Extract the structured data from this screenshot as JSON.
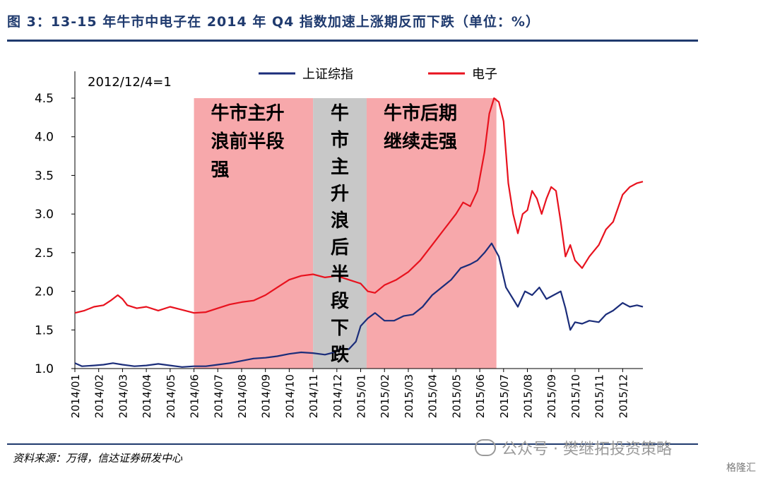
{
  "header": {
    "title": "图 3：13-15 年牛市中电子在 2014 年 Q4 指数加速上涨期反而下跌（单位：%）"
  },
  "footer": {
    "source": "资料来源：万得，信达证券研发中心",
    "watermark": "公众号 · 樊继拓投资策略",
    "corner_mark": "格隆汇"
  },
  "chart_data": {
    "type": "line",
    "note": "2012/12/4=1",
    "ylim": [
      1.0,
      4.5
    ],
    "yticks": [
      "1.0",
      "1.5",
      "2.0",
      "2.5",
      "3.0",
      "3.5",
      "4.0",
      "4.5"
    ],
    "categories": [
      "2014/01",
      "2014/02",
      "2014/03",
      "2014/04",
      "2014/05",
      "2014/06",
      "2014/07",
      "2014/08",
      "2014/09",
      "2014/10",
      "2014/11",
      "2014/12",
      "2015/01",
      "2015/02",
      "2015/03",
      "2015/04",
      "2015/05",
      "2015/06",
      "2015/07",
      "2015/08",
      "2015/09",
      "2015/10",
      "2015/11",
      "2015/12"
    ],
    "x_index_range": [
      0,
      23.85
    ],
    "legend_position": "top-center",
    "series": [
      {
        "name": "上证综指",
        "color": "#1b2d7a",
        "points": [
          [
            0,
            1.07
          ],
          [
            0.3,
            1.03
          ],
          [
            0.8,
            1.04
          ],
          [
            1.2,
            1.05
          ],
          [
            1.6,
            1.07
          ],
          [
            2.0,
            1.05
          ],
          [
            2.5,
            1.03
          ],
          [
            3.0,
            1.04
          ],
          [
            3.5,
            1.06
          ],
          [
            4.0,
            1.04
          ],
          [
            4.5,
            1.02
          ],
          [
            5.0,
            1.03
          ],
          [
            5.5,
            1.03
          ],
          [
            6.0,
            1.05
          ],
          [
            6.5,
            1.07
          ],
          [
            7.0,
            1.1
          ],
          [
            7.5,
            1.13
          ],
          [
            8.0,
            1.14
          ],
          [
            8.5,
            1.16
          ],
          [
            9.0,
            1.19
          ],
          [
            9.5,
            1.21
          ],
          [
            10.0,
            1.2
          ],
          [
            10.5,
            1.18
          ],
          [
            10.9,
            1.21
          ],
          [
            11.2,
            1.26
          ],
          [
            11.5,
            1.25
          ],
          [
            11.8,
            1.35
          ],
          [
            12.0,
            1.55
          ],
          [
            12.3,
            1.65
          ],
          [
            12.6,
            1.72
          ],
          [
            13.0,
            1.62
          ],
          [
            13.4,
            1.62
          ],
          [
            13.8,
            1.68
          ],
          [
            14.2,
            1.7
          ],
          [
            14.6,
            1.8
          ],
          [
            15.0,
            1.95
          ],
          [
            15.4,
            2.05
          ],
          [
            15.8,
            2.15
          ],
          [
            16.2,
            2.3
          ],
          [
            16.6,
            2.35
          ],
          [
            16.9,
            2.4
          ],
          [
            17.2,
            2.5
          ],
          [
            17.5,
            2.62
          ],
          [
            17.8,
            2.45
          ],
          [
            18.1,
            2.05
          ],
          [
            18.4,
            1.9
          ],
          [
            18.6,
            1.8
          ],
          [
            18.9,
            2.0
          ],
          [
            19.2,
            1.95
          ],
          [
            19.5,
            2.05
          ],
          [
            19.8,
            1.9
          ],
          [
            20.1,
            1.95
          ],
          [
            20.4,
            2.0
          ],
          [
            20.6,
            1.78
          ],
          [
            20.8,
            1.5
          ],
          [
            21.0,
            1.6
          ],
          [
            21.3,
            1.58
          ],
          [
            21.6,
            1.62
          ],
          [
            22.0,
            1.6
          ],
          [
            22.3,
            1.7
          ],
          [
            22.6,
            1.75
          ],
          [
            23.0,
            1.85
          ],
          [
            23.3,
            1.8
          ],
          [
            23.6,
            1.82
          ],
          [
            23.85,
            1.8
          ]
        ]
      },
      {
        "name": "电子",
        "color": "#e8121e",
        "points": [
          [
            0,
            1.72
          ],
          [
            0.4,
            1.75
          ],
          [
            0.8,
            1.8
          ],
          [
            1.2,
            1.82
          ],
          [
            1.5,
            1.88
          ],
          [
            1.8,
            1.95
          ],
          [
            2.0,
            1.9
          ],
          [
            2.2,
            1.82
          ],
          [
            2.6,
            1.78
          ],
          [
            3.0,
            1.8
          ],
          [
            3.5,
            1.75
          ],
          [
            4.0,
            1.8
          ],
          [
            4.5,
            1.76
          ],
          [
            5.0,
            1.72
          ],
          [
            5.5,
            1.73
          ],
          [
            6.0,
            1.78
          ],
          [
            6.5,
            1.83
          ],
          [
            7.0,
            1.86
          ],
          [
            7.5,
            1.88
          ],
          [
            8.0,
            1.95
          ],
          [
            8.5,
            2.05
          ],
          [
            9.0,
            2.15
          ],
          [
            9.5,
            2.2
          ],
          [
            10.0,
            2.22
          ],
          [
            10.5,
            2.18
          ],
          [
            11.0,
            2.2
          ],
          [
            11.5,
            2.15
          ],
          [
            12.0,
            2.1
          ],
          [
            12.3,
            2.0
          ],
          [
            12.6,
            1.98
          ],
          [
            13.0,
            2.08
          ],
          [
            13.5,
            2.15
          ],
          [
            14.0,
            2.25
          ],
          [
            14.5,
            2.4
          ],
          [
            15.0,
            2.6
          ],
          [
            15.5,
            2.8
          ],
          [
            16.0,
            3.0
          ],
          [
            16.3,
            3.15
          ],
          [
            16.6,
            3.1
          ],
          [
            16.9,
            3.3
          ],
          [
            17.2,
            3.8
          ],
          [
            17.4,
            4.3
          ],
          [
            17.6,
            4.5
          ],
          [
            17.8,
            4.45
          ],
          [
            18.0,
            4.2
          ],
          [
            18.2,
            3.4
          ],
          [
            18.4,
            3.0
          ],
          [
            18.6,
            2.75
          ],
          [
            18.8,
            3.0
          ],
          [
            19.0,
            3.05
          ],
          [
            19.2,
            3.3
          ],
          [
            19.4,
            3.2
          ],
          [
            19.6,
            3.0
          ],
          [
            19.8,
            3.2
          ],
          [
            20.0,
            3.35
          ],
          [
            20.2,
            3.3
          ],
          [
            20.4,
            2.9
          ],
          [
            20.6,
            2.45
          ],
          [
            20.8,
            2.6
          ],
          [
            21.0,
            2.4
          ],
          [
            21.3,
            2.3
          ],
          [
            21.6,
            2.45
          ],
          [
            22.0,
            2.6
          ],
          [
            22.3,
            2.8
          ],
          [
            22.6,
            2.9
          ],
          [
            23.0,
            3.25
          ],
          [
            23.3,
            3.35
          ],
          [
            23.6,
            3.4
          ],
          [
            23.85,
            3.42
          ]
        ]
      }
    ],
    "shaded_regions": [
      {
        "label": "牛市主升浪前半段强",
        "lines": [
          "牛市主升",
          "浪前半段",
          "强"
        ],
        "x_range": [
          5.0,
          10.0
        ],
        "color": "#f7a8ab",
        "orientation": "horizontal"
      },
      {
        "label": "牛市主升浪后半段下跌",
        "lines": [
          "牛",
          "市",
          "主",
          "升",
          "浪",
          "后",
          "半",
          "段",
          "下",
          "跌"
        ],
        "x_range": [
          10.0,
          12.25
        ],
        "color": "#c8c8c8",
        "orientation": "vertical"
      },
      {
        "label": "牛市后期继续走强",
        "lines": [
          "牛市后期",
          "继续走强"
        ],
        "x_range": [
          12.25,
          17.7
        ],
        "color": "#f7a8ab",
        "orientation": "horizontal"
      }
    ]
  }
}
